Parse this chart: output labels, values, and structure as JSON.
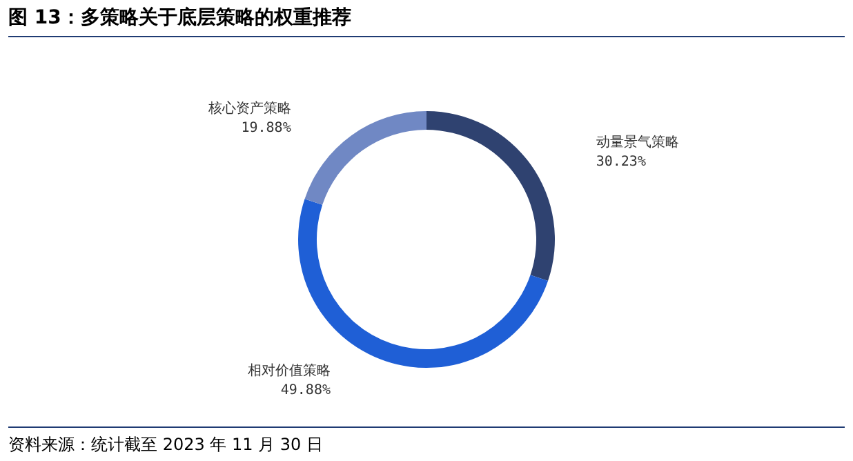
{
  "chart_data": {
    "type": "donut",
    "title": "图 13：多策略关于底层策略的权重推荐",
    "categories": [
      "动量景气策略",
      "相对价值策略",
      "核心资产策略"
    ],
    "values": [
      30.23,
      49.88,
      19.88
    ],
    "colors": [
      "#2f4270",
      "#1f5fd6",
      "#7088c4"
    ],
    "value_labels": [
      "30.23%",
      "49.88%",
      "19.88%"
    ],
    "annotations": [
      "资料来源：统计截至 2023 年 11 月 30 日"
    ],
    "legend": false
  }
}
